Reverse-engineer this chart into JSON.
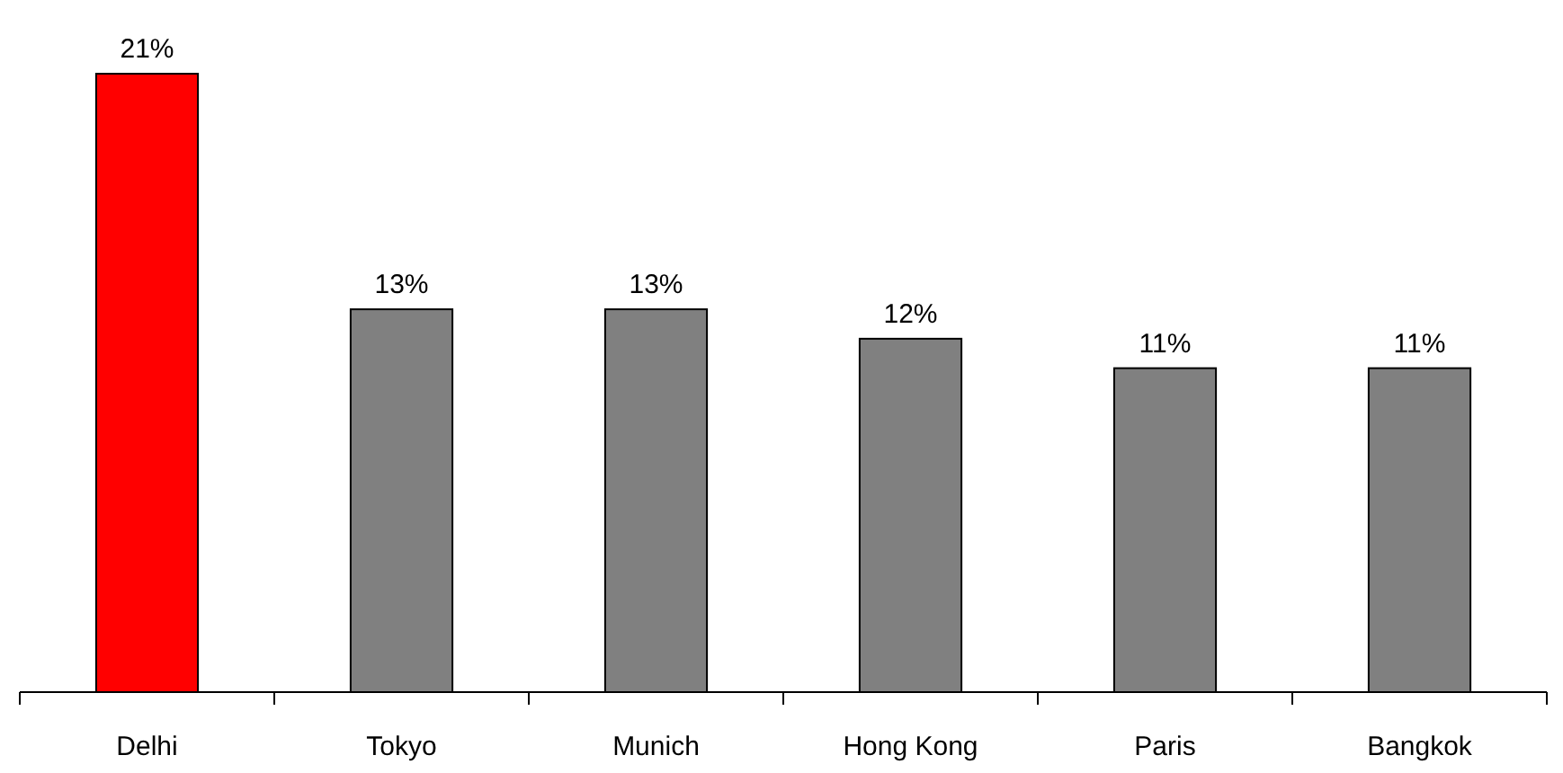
{
  "chart_data": {
    "type": "bar",
    "categories": [
      "Delhi",
      "Tokyo",
      "Munich",
      "Hong Kong",
      "Paris",
      "Bangkok"
    ],
    "values": [
      21,
      13,
      13,
      12,
      11,
      11
    ],
    "colors": [
      "#ff0000",
      "#808080",
      "#808080",
      "#808080",
      "#808080",
      "#808080"
    ],
    "value_labels": [
      "21%",
      "13%",
      "13%",
      "12%",
      "11%",
      "11%"
    ]
  }
}
